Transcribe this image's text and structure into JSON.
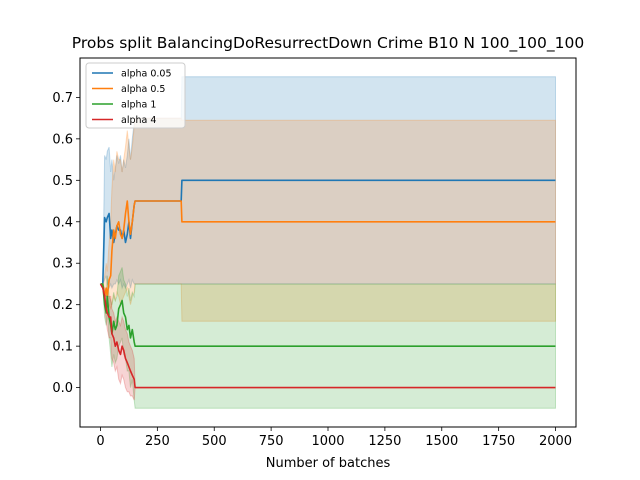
{
  "chart_data": {
    "type": "line",
    "title": "Probs split BalancingDoResurrectDown Crime B10 N 100_100_100",
    "xlabel": "Number of batches",
    "ylabel": "",
    "xlim": [
      -90,
      2090
    ],
    "ylim": [
      -0.095,
      0.795
    ],
    "xticks": [
      0,
      250,
      500,
      750,
      1000,
      1250,
      1500,
      1750,
      2000
    ],
    "xtick_labels": [
      "0",
      "250",
      "500",
      "750",
      "1000",
      "1250",
      "1500",
      "1750",
      "2000"
    ],
    "yticks": [
      0.0,
      0.1,
      0.2,
      0.3,
      0.4,
      0.5,
      0.6,
      0.7
    ],
    "ytick_labels": [
      "0.0",
      "0.1",
      "0.2",
      "0.3",
      "0.4",
      "0.5",
      "0.6",
      "0.7"
    ],
    "grid": false,
    "legend_position": "upper-left",
    "series": [
      {
        "name": "alpha 0.05",
        "color": "#1f77b4",
        "x": [
          0,
          10,
          18,
          25,
          30,
          38,
          45,
          50,
          58,
          65,
          72,
          80,
          88,
          95,
          102,
          110,
          118,
          125,
          132,
          140,
          148,
          152,
          160,
          200,
          250,
          300,
          355,
          358,
          400,
          600,
          800,
          1000,
          1250,
          1500,
          1750,
          2000
        ],
        "y": [
          0.25,
          0.25,
          0.41,
          0.4,
          0.41,
          0.42,
          0.36,
          0.38,
          0.35,
          0.37,
          0.39,
          0.38,
          0.38,
          0.36,
          0.38,
          0.35,
          0.37,
          0.4,
          0.36,
          0.4,
          0.44,
          0.45,
          0.45,
          0.45,
          0.45,
          0.45,
          0.45,
          0.5,
          0.5,
          0.5,
          0.5,
          0.5,
          0.5,
          0.5,
          0.5,
          0.5
        ],
        "band_lower": [
          0.25,
          0.25,
          0.26,
          0.27,
          0.25,
          0.24,
          0.25,
          0.24,
          0.25,
          0.25,
          0.26,
          0.25,
          0.26,
          0.24,
          0.25,
          0.24,
          0.25,
          0.26,
          0.24,
          0.26,
          0.25,
          0.25,
          0.25,
          0.25,
          0.25,
          0.25,
          0.25,
          0.25,
          0.25,
          0.25,
          0.25,
          0.25,
          0.25,
          0.25,
          0.25,
          0.25
        ],
        "band_upper": [
          0.25,
          0.25,
          0.56,
          0.55,
          0.57,
          0.58,
          0.52,
          0.55,
          0.5,
          0.53,
          0.56,
          0.54,
          0.56,
          0.52,
          0.55,
          0.53,
          0.56,
          0.6,
          0.55,
          0.6,
          0.64,
          0.65,
          0.65,
          0.65,
          0.65,
          0.65,
          0.65,
          0.75,
          0.75,
          0.75,
          0.75,
          0.75,
          0.75,
          0.75,
          0.75,
          0.75
        ]
      },
      {
        "name": "alpha 0.5",
        "color": "#ff7f0e",
        "x": [
          0,
          10,
          18,
          25,
          30,
          38,
          45,
          50,
          58,
          65,
          72,
          80,
          88,
          95,
          102,
          110,
          118,
          125,
          132,
          140,
          148,
          152,
          160,
          200,
          250,
          300,
          355,
          358,
          400,
          600,
          800,
          1000,
          1250,
          1500,
          1750,
          2000
        ],
        "y": [
          0.25,
          0.25,
          0.22,
          0.24,
          0.22,
          0.26,
          0.27,
          0.33,
          0.38,
          0.36,
          0.39,
          0.4,
          0.37,
          0.36,
          0.38,
          0.42,
          0.45,
          0.4,
          0.37,
          0.4,
          0.44,
          0.45,
          0.45,
          0.45,
          0.45,
          0.45,
          0.45,
          0.4,
          0.4,
          0.4,
          0.4,
          0.4,
          0.4,
          0.4,
          0.4,
          0.4
        ],
        "band_lower": [
          0.25,
          0.25,
          0.2,
          0.21,
          0.18,
          0.2,
          0.19,
          0.2,
          0.22,
          0.21,
          0.23,
          0.22,
          0.2,
          0.21,
          0.22,
          0.23,
          0.24,
          0.22,
          0.2,
          0.22,
          0.23,
          0.25,
          0.25,
          0.25,
          0.25,
          0.25,
          0.25,
          0.16,
          0.16,
          0.16,
          0.16,
          0.16,
          0.16,
          0.16,
          0.16,
          0.16
        ],
        "band_upper": [
          0.25,
          0.25,
          0.27,
          0.3,
          0.28,
          0.35,
          0.4,
          0.48,
          0.55,
          0.52,
          0.57,
          0.55,
          0.55,
          0.52,
          0.55,
          0.58,
          0.62,
          0.58,
          0.55,
          0.58,
          0.63,
          0.65,
          0.65,
          0.65,
          0.65,
          0.65,
          0.65,
          0.645,
          0.645,
          0.645,
          0.645,
          0.645,
          0.645,
          0.645,
          0.645,
          0.645
        ]
      },
      {
        "name": "alpha 1",
        "color": "#2ca02c",
        "x": [
          0,
          10,
          18,
          25,
          30,
          38,
          45,
          50,
          58,
          65,
          72,
          80,
          88,
          95,
          102,
          110,
          118,
          125,
          132,
          140,
          148,
          152,
          160,
          200,
          250,
          300,
          355,
          358,
          400,
          600,
          800,
          1000,
          1250,
          1500,
          1750,
          2000
        ],
        "y": [
          0.25,
          0.25,
          0.2,
          0.18,
          0.22,
          0.17,
          0.15,
          0.13,
          0.16,
          0.14,
          0.15,
          0.19,
          0.2,
          0.21,
          0.18,
          0.17,
          0.14,
          0.15,
          0.12,
          0.14,
          0.11,
          0.1,
          0.1,
          0.1,
          0.1,
          0.1,
          0.1,
          0.1,
          0.1,
          0.1,
          0.1,
          0.1,
          0.1,
          0.1,
          0.1,
          0.1
        ],
        "band_lower": [
          0.25,
          0.25,
          0.17,
          0.15,
          0.18,
          0.12,
          0.08,
          0.05,
          0.08,
          0.06,
          0.07,
          0.1,
          0.11,
          0.12,
          0.08,
          0.07,
          0.04,
          0.04,
          0.0,
          0.02,
          -0.03,
          -0.05,
          -0.05,
          -0.05,
          -0.05,
          -0.05,
          -0.05,
          -0.05,
          -0.05,
          -0.05,
          -0.05,
          -0.05,
          -0.05,
          -0.05,
          -0.05,
          -0.05
        ],
        "band_upper": [
          0.25,
          0.25,
          0.23,
          0.22,
          0.27,
          0.22,
          0.21,
          0.2,
          0.23,
          0.21,
          0.22,
          0.27,
          0.28,
          0.29,
          0.26,
          0.25,
          0.22,
          0.24,
          0.21,
          0.23,
          0.22,
          0.25,
          0.25,
          0.25,
          0.25,
          0.25,
          0.25,
          0.25,
          0.25,
          0.25,
          0.25,
          0.25,
          0.25,
          0.25,
          0.25,
          0.25
        ]
      },
      {
        "name": "alpha 4",
        "color": "#d62728",
        "x": [
          0,
          10,
          18,
          25,
          30,
          38,
          45,
          50,
          58,
          65,
          72,
          80,
          88,
          95,
          102,
          110,
          118,
          125,
          132,
          140,
          148,
          152,
          160,
          200,
          250,
          300,
          355,
          358,
          400,
          600,
          800,
          1000,
          1250,
          1500,
          1750,
          2000
        ],
        "y": [
          0.25,
          0.24,
          0.22,
          0.19,
          0.18,
          0.17,
          0.17,
          0.13,
          0.12,
          0.1,
          0.11,
          0.09,
          0.08,
          0.1,
          0.09,
          0.07,
          0.06,
          0.05,
          0.04,
          0.03,
          0.02,
          0.0,
          0.0,
          0.0,
          0.0,
          0.0,
          0.0,
          0.0,
          0.0,
          0.0,
          0.0,
          0.0,
          0.0,
          0.0,
          0.0,
          0.0
        ],
        "band_lower": [
          0.25,
          0.24,
          0.2,
          0.16,
          0.14,
          0.12,
          0.12,
          0.07,
          0.06,
          0.04,
          0.05,
          0.02,
          0.01,
          0.03,
          0.02,
          0.0,
          -0.01,
          -0.01,
          -0.02,
          -0.02,
          -0.03,
          0.0,
          0.0,
          0.0,
          0.0,
          0.0,
          0.0,
          0.0,
          0.0,
          0.0,
          0.0,
          0.0,
          0.0,
          0.0,
          0.0,
          0.0
        ],
        "band_upper": [
          0.25,
          0.25,
          0.24,
          0.22,
          0.22,
          0.22,
          0.22,
          0.19,
          0.18,
          0.16,
          0.17,
          0.16,
          0.15,
          0.17,
          0.16,
          0.14,
          0.13,
          0.11,
          0.1,
          0.09,
          0.07,
          0.0,
          0.0,
          0.0,
          0.0,
          0.0,
          0.0,
          0.0,
          0.0,
          0.0,
          0.0,
          0.0,
          0.0,
          0.0,
          0.0,
          0.0
        ]
      }
    ]
  }
}
